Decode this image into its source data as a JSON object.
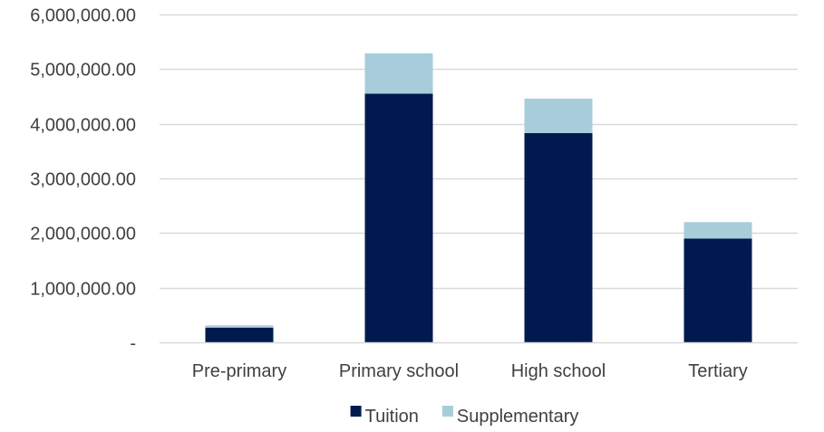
{
  "chart_data": {
    "type": "bar",
    "stacked": true,
    "categories": [
      "Pre-primary",
      "Primary school",
      "High school",
      "Tertiary"
    ],
    "series": [
      {
        "name": "Tuition",
        "color": "#001a4f",
        "values": [
          270000,
          4550000,
          3830000,
          1900000
        ]
      },
      {
        "name": "Supplementary",
        "color": "#a7cddb",
        "values": [
          40000,
          740000,
          630000,
          300000
        ]
      }
    ],
    "y_ticks": [
      {
        "value": 0,
        "label": "-"
      },
      {
        "value": 1000000,
        "label": "1,000,000.00"
      },
      {
        "value": 2000000,
        "label": "2,000,000.00"
      },
      {
        "value": 3000000,
        "label": "3,000,000.00"
      },
      {
        "value": 4000000,
        "label": "4,000,000.00"
      },
      {
        "value": 5000000,
        "label": "5,000,000.00"
      },
      {
        "value": 6000000,
        "label": "6,000,000.00"
      }
    ],
    "ylim": [
      0,
      6000000
    ],
    "grid": true,
    "gridline_color": "#d9d9d9",
    "legend_position": "bottom"
  }
}
